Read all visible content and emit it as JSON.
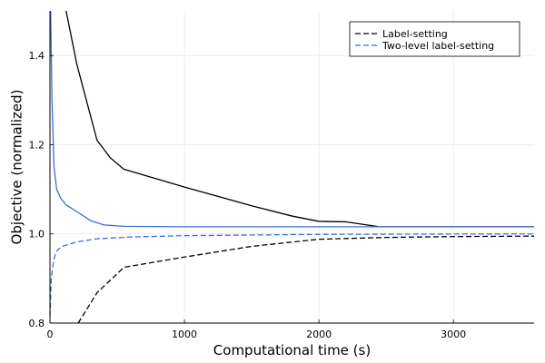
{
  "chart_data": {
    "type": "line",
    "xlabel": "Computational time (s)",
    "ylabel": "Objective (normalized)",
    "xlim": [
      0,
      3600
    ],
    "ylim": [
      0.8,
      1.5
    ],
    "xticks": [
      0,
      1000,
      2000,
      3000
    ],
    "yticks": [
      0.8,
      1.0,
      1.2,
      1.4
    ],
    "x_tick_labels": [
      "0",
      "1000",
      "2000",
      "3000"
    ],
    "y_tick_labels": [
      "0.8",
      "1.0",
      "1.2",
      "1.4"
    ],
    "grid": true,
    "legend_position": "top-right",
    "legend": [
      "Label-setting",
      "Two-level label-setting"
    ],
    "colors": {
      "label_setting": "#000000",
      "two_level": "#3d6dd4"
    },
    "series": [
      {
        "name": "Label-setting",
        "bound": "upper",
        "style": "solid",
        "color": "#000000",
        "x": [
          120,
          200,
          350,
          450,
          550,
          1000,
          1500,
          1800,
          2000,
          2200,
          2450,
          3600
        ],
        "y": [
          1.5,
          1.38,
          1.21,
          1.17,
          1.145,
          1.105,
          1.063,
          1.04,
          1.028,
          1.027,
          1.016,
          1.016
        ]
      },
      {
        "name": "Label-setting",
        "bound": "lower",
        "style": "dashed",
        "color": "#000000",
        "x": [
          210,
          350,
          550,
          1000,
          1500,
          2000,
          2500,
          3000,
          3600
        ],
        "y": [
          0.8,
          0.868,
          0.925,
          0.948,
          0.972,
          0.988,
          0.992,
          0.994,
          0.995
        ]
      },
      {
        "name": "Two-level label-setting",
        "bound": "upper",
        "style": "solid",
        "color": "#3d6dd4",
        "x": [
          5,
          15,
          30,
          50,
          80,
          120,
          200,
          300,
          400,
          550,
          1000,
          2000,
          3600
        ],
        "y": [
          1.5,
          1.3,
          1.15,
          1.1,
          1.08,
          1.065,
          1.05,
          1.03,
          1.02,
          1.017,
          1.016,
          1.016,
          1.016
        ]
      },
      {
        "name": "Two-level label-setting",
        "bound": "lower",
        "style": "dashed",
        "color": "#3d6dd4",
        "x": [
          0,
          10,
          25,
          40,
          60,
          100,
          200,
          350,
          600,
          1000,
          2000,
          3600
        ],
        "y": [
          0.815,
          0.9,
          0.935,
          0.955,
          0.965,
          0.973,
          0.982,
          0.989,
          0.993,
          0.996,
          0.999,
          1.0
        ]
      }
    ]
  }
}
